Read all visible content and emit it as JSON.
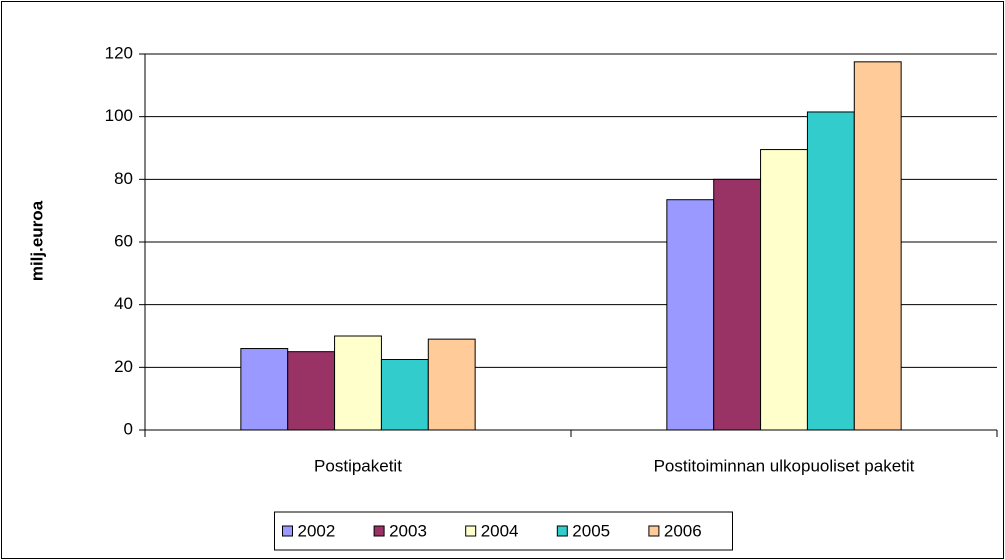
{
  "chart_data": {
    "type": "bar",
    "y_label": "milj.euroa",
    "categories": [
      "Postipaketit",
      "Postitoiminnan ulkopuoliset paketit"
    ],
    "series": [
      {
        "name": "2002",
        "color": "#9999ff",
        "values": [
          26,
          73.5
        ]
      },
      {
        "name": "2003",
        "color": "#993366",
        "values": [
          25,
          80
        ]
      },
      {
        "name": "2004",
        "color": "#ffffcc",
        "values": [
          30,
          89.5
        ]
      },
      {
        "name": "2005",
        "color": "#33cccc",
        "values": [
          22.5,
          101.5
        ]
      },
      {
        "name": "2006",
        "color": "#ffcc99",
        "values": [
          29,
          117.5
        ]
      }
    ],
    "ylim": [
      0,
      120
    ],
    "yticks": [
      0,
      20,
      40,
      60,
      80,
      100,
      120
    ],
    "grid": true,
    "legend": "bottom"
  }
}
